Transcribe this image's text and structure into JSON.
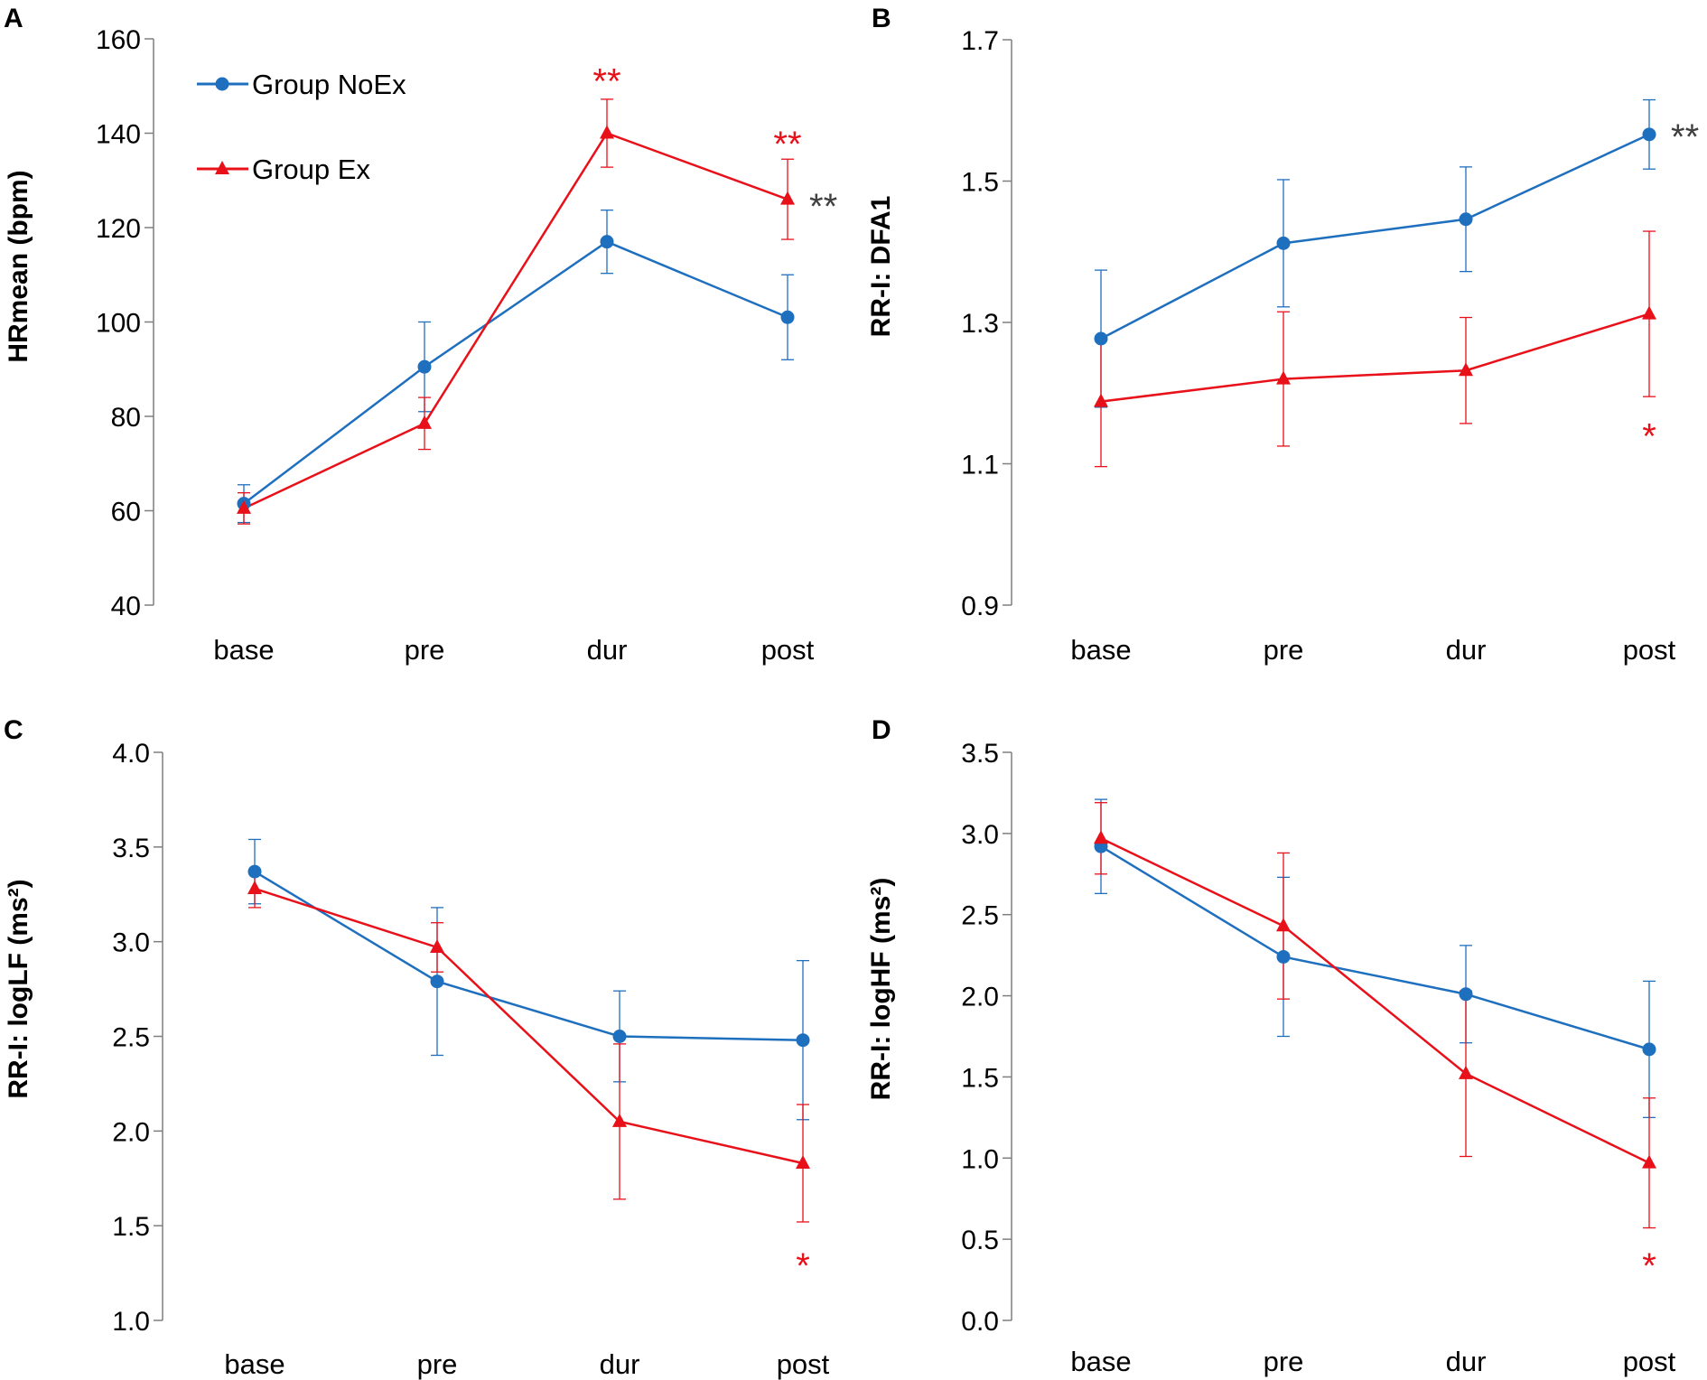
{
  "legend": [
    {
      "name": "Group NoEx",
      "color": "#1f6fbf",
      "marker": "circle"
    },
    {
      "name": "Group Ex",
      "color": "#e8111a",
      "marker": "triangle"
    }
  ],
  "chart_data": [
    {
      "panel": "A",
      "type": "line",
      "categories": [
        "base",
        "pre",
        "dur",
        "post"
      ],
      "ylabel": "HRmean (bpm)",
      "ylim": [
        40,
        160
      ],
      "yticks": [
        40,
        60,
        80,
        100,
        120,
        140,
        160
      ],
      "yticklabels": [
        "40",
        "60",
        "80",
        "100",
        "120",
        "140",
        "160"
      ],
      "series": [
        {
          "name": "Group NoEx",
          "color": "#1f6fbf",
          "marker": "circle",
          "values": [
            61.5,
            90.5,
            117,
            101
          ],
          "errors": [
            4,
            9.5,
            6.7,
            9
          ]
        },
        {
          "name": "Group Ex",
          "color": "#e8111a",
          "marker": "triangle",
          "values": [
            60.5,
            78.5,
            140,
            126
          ],
          "errors": [
            3.3,
            5.5,
            7.2,
            8.5
          ]
        }
      ],
      "annotations": [
        {
          "text": "**",
          "category": "dur",
          "value": 151.5,
          "color": "#e8111a"
        },
        {
          "text": "**",
          "category": "post",
          "value": 138.2,
          "color": "#e8111a"
        },
        {
          "text": "**",
          "category": "post",
          "value": 125,
          "offset": "right",
          "color": "#404040"
        }
      ]
    },
    {
      "panel": "B",
      "type": "line",
      "categories": [
        "base",
        "pre",
        "dur",
        "post"
      ],
      "ylabel": "RR-I: DFA1",
      "ylim": [
        0.9,
        1.7
      ],
      "yticks": [
        0.9,
        1.1,
        1.3,
        1.5,
        1.7
      ],
      "yticklabels": [
        "0.9",
        "1.1",
        "1.3",
        "1.5",
        "1.7"
      ],
      "series": [
        {
          "name": "Group NoEx",
          "color": "#1f6fbf",
          "marker": "circle",
          "values": [
            1.277,
            1.412,
            1.446,
            1.566
          ],
          "errors": [
            0.097,
            0.09,
            0.074,
            0.049
          ]
        },
        {
          "name": "Group Ex",
          "color": "#e8111a",
          "marker": "triangle",
          "values": [
            1.188,
            1.22,
            1.232,
            1.312
          ],
          "errors": [
            0.092,
            0.095,
            0.075,
            0.117
          ]
        }
      ],
      "annotations": [
        {
          "text": "**",
          "category": "post",
          "value": 1.566,
          "offset": "right",
          "color": "#404040"
        },
        {
          "text": "*",
          "category": "post",
          "value": 1.142,
          "color": "#e8111a"
        }
      ]
    },
    {
      "panel": "C",
      "type": "line",
      "categories": [
        "base",
        "pre",
        "dur",
        "post"
      ],
      "ylabel": "RR-I: logLF (ms²)",
      "ylim": [
        1.0,
        4.0
      ],
      "yticks": [
        1.0,
        1.5,
        2.0,
        2.5,
        3.0,
        3.5,
        4.0
      ],
      "yticklabels": [
        "1.0",
        "1.5",
        "2.0",
        "2.5",
        "3.0",
        "3.5",
        "4.0"
      ],
      "series": [
        {
          "name": "Group NoEx",
          "color": "#1f6fbf",
          "marker": "circle",
          "values": [
            3.37,
            2.79,
            2.5,
            2.48
          ],
          "errors": [
            0.17,
            0.39,
            0.24,
            0.42
          ]
        },
        {
          "name": "Group Ex",
          "color": "#e8111a",
          "marker": "triangle",
          "values": [
            3.28,
            2.97,
            2.05,
            1.83
          ],
          "errors": [
            0.1,
            0.13,
            0.41,
            0.31
          ]
        }
      ],
      "annotations": [
        {
          "text": "*",
          "category": "post",
          "value": 1.3,
          "color": "#e8111a"
        }
      ]
    },
    {
      "panel": "D",
      "type": "line",
      "categories": [
        "base",
        "pre",
        "dur",
        "post"
      ],
      "ylabel": "RR-I: logHF (ms²)",
      "ylim": [
        0.0,
        3.5
      ],
      "yticks": [
        0.0,
        0.5,
        1.0,
        1.5,
        2.0,
        2.5,
        3.0,
        3.5
      ],
      "yticklabels": [
        "0.0",
        "0.5",
        "1.0",
        "1.5",
        "2.0",
        "2.5",
        "3.0",
        "3.5"
      ],
      "series": [
        {
          "name": "Group NoEx",
          "color": "#1f6fbf",
          "marker": "circle",
          "values": [
            2.92,
            2.24,
            2.01,
            1.67
          ],
          "errors": [
            0.29,
            0.49,
            0.3,
            0.42
          ]
        },
        {
          "name": "Group Ex",
          "color": "#e8111a",
          "marker": "triangle",
          "values": [
            2.97,
            2.43,
            1.52,
            0.97
          ],
          "errors": [
            0.22,
            0.45,
            0.51,
            0.4
          ]
        }
      ],
      "annotations": [
        {
          "text": "*",
          "category": "post",
          "value": 0.35,
          "color": "#e8111a"
        }
      ]
    }
  ]
}
